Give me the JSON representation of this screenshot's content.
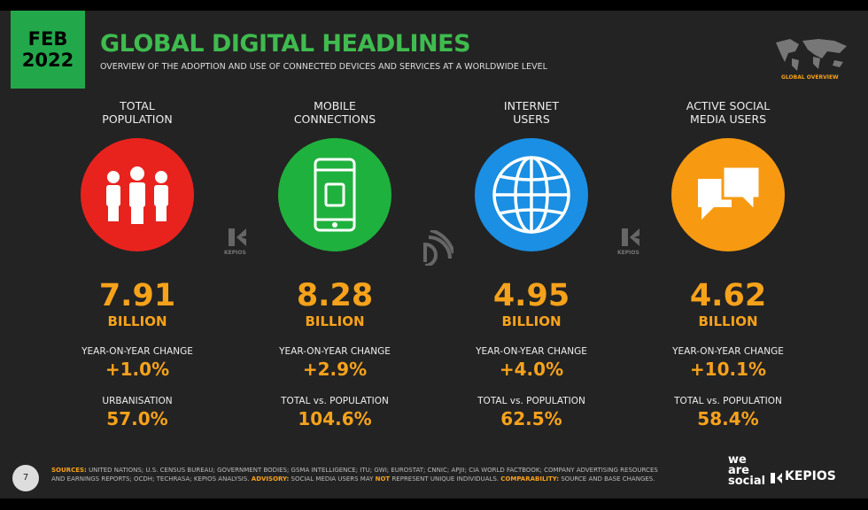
{
  "header": {
    "badge": [
      "FEB",
      "2022"
    ],
    "title": "GLOBAL DIGITAL HEADLINES",
    "subtitle": "OVERVIEW OF THE ADOPTION AND USE OF CONNECTED DEVICES AND SERVICES AT A WORLDWIDE LEVEL",
    "map_label": "GLOBAL OVERVIEW"
  },
  "columns": [
    {
      "label": [
        "TOTAL",
        "POPULATION"
      ],
      "value": "7.91",
      "unit": "BILLION",
      "change_label": "YEAR-ON-YEAR CHANGE",
      "change": "+1.0%",
      "metric_label": "URBANISATION",
      "metric": "57.0%"
    },
    {
      "label": [
        "MOBILE",
        "CONNECTIONS"
      ],
      "value": "8.28",
      "unit": "BILLION",
      "change_label": "YEAR-ON-YEAR CHANGE",
      "change": "+2.9%",
      "metric_label": "TOTAL vs. POPULATION",
      "metric": "104.6%"
    },
    {
      "label": [
        "INTERNET",
        "USERS"
      ],
      "value": "4.95",
      "unit": "BILLION",
      "change_label": "YEAR-ON-YEAR CHANGE",
      "change": "+4.0%",
      "metric_label": "TOTAL vs. POPULATION",
      "metric": "62.5%"
    },
    {
      "label": [
        "ACTIVE SOCIAL",
        "MEDIA USERS"
      ],
      "value": "4.62",
      "unit": "BILLION",
      "change_label": "YEAR-ON-YEAR CHANGE",
      "change": "+10.1%",
      "metric_label": "TOTAL vs. POPULATION",
      "metric": "58.4%"
    }
  ],
  "watermark": "KEPIOS",
  "footer": {
    "page": "7",
    "sources_label": "SOURCES:",
    "sources": "UNITED NATIONS; U.S. CENSUS BUREAU; GOVERNMENT BODIES; GSMA INTELLIGENCE; ITU; GWI; EUROSTAT; CNNIC; APJII; CIA WORLD FACTBOOK; COMPANY ADVERTISING RESOURCES AND EARNINGS REPORTS; OCDH; TECHRASA; KEPIOS ANALYSIS.",
    "advisory_label": "ADVISORY:",
    "advisory": [
      "SOCIAL MEDIA USERS MAY",
      "NOT",
      "REPRESENT UNIQUE INDIVIDUALS."
    ],
    "comparability_label": "COMPARABILITY:",
    "comparability": "SOURCE AND BASE CHANGES."
  },
  "brands": {
    "we_are_social": [
      "we",
      "are",
      "social"
    ],
    "kepios": "KEPIOS"
  }
}
